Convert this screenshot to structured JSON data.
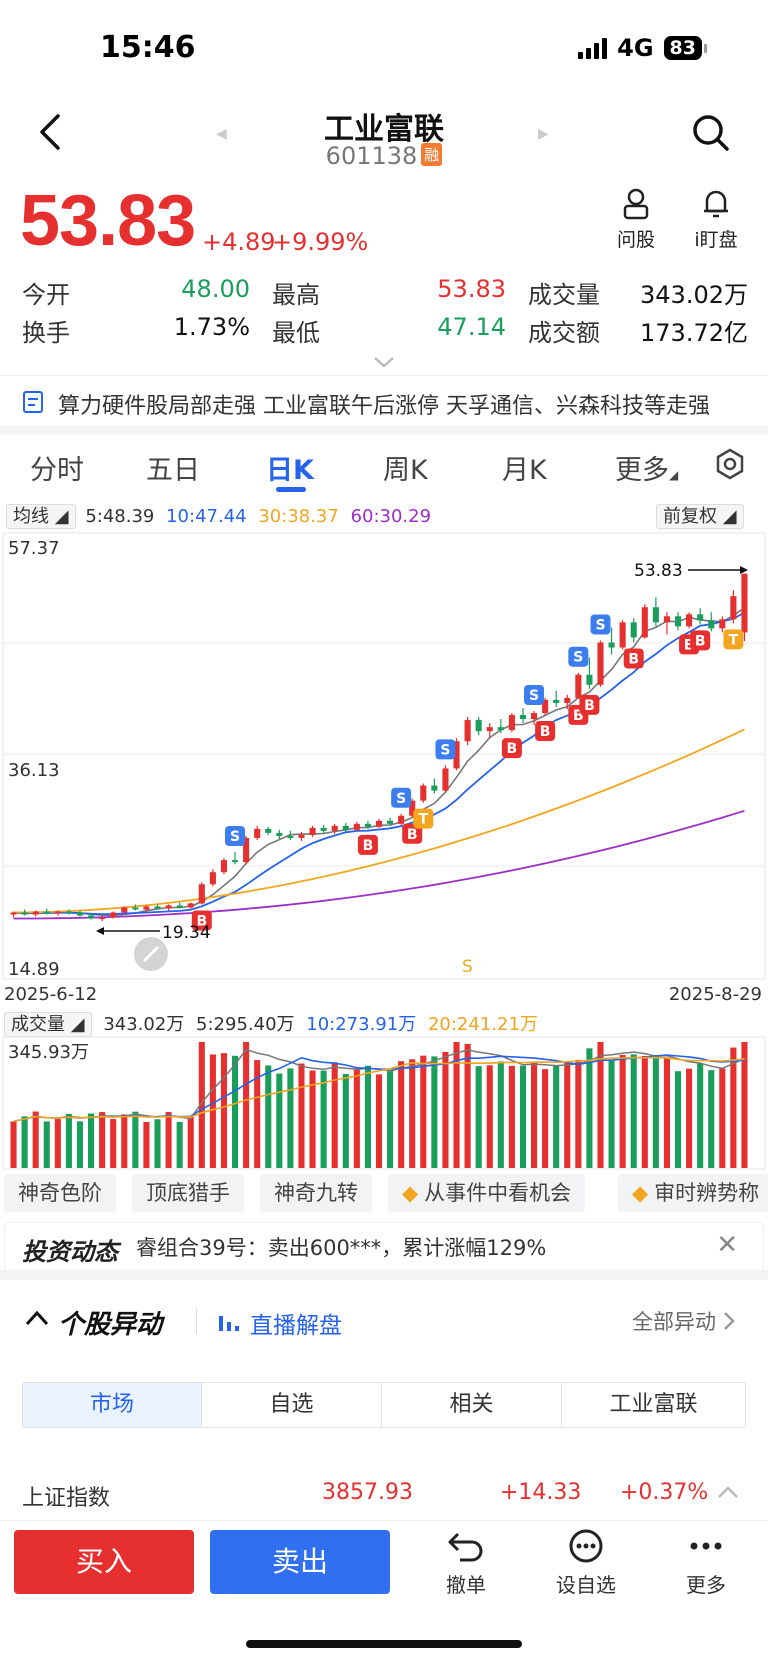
{
  "status": {
    "time": "15:46",
    "network": "4G",
    "battery": "83"
  },
  "header": {
    "title": "工业富联",
    "code": "601138",
    "rong_badge": "融"
  },
  "quote": {
    "price": "53.83",
    "change": "+4.89",
    "change_pct": "+9.99%",
    "ask_label": "问股",
    "watch_label": "i盯盘",
    "stats": [
      {
        "label": "今开",
        "value": "48.00",
        "color": "green"
      },
      {
        "label": "最高",
        "value": "53.83",
        "color": "red"
      },
      {
        "label": "成交量",
        "value": "343.02万",
        "color": "black"
      },
      {
        "label": "换手",
        "value": "1.73%",
        "color": "black"
      },
      {
        "label": "最低",
        "value": "47.14",
        "color": "green"
      },
      {
        "label": "成交额",
        "value": "173.72亿",
        "color": "black"
      }
    ]
  },
  "news": {
    "headline": "算力硬件股局部走强 工业富联午后涨停 天孚通信、兴森科技等走强"
  },
  "tabs": [
    "分时",
    "五日",
    "日K",
    "周K",
    "月K",
    "更多"
  ],
  "active_tab": "日K",
  "ma": {
    "chip": "均线",
    "ma5": "5:48.39",
    "ma10": "10:47.44",
    "ma30": "30:38.37",
    "ma60": "60:30.29",
    "adjust": "前复权"
  },
  "kchart": {
    "y_top": "57.37",
    "y_mid": "36.13",
    "y_bottom": "14.89",
    "date_start": "2025-6-12",
    "date_end": "2025-8-29",
    "high_label": "53.83",
    "low_label": "19.34",
    "s_marker": "S"
  },
  "volume": {
    "chip": "成交量",
    "vol": "343.02万",
    "ma5": "5:295.40万",
    "ma10": "10:273.91万",
    "ma20": "20:241.21万",
    "y_top": "345.93万"
  },
  "features": [
    "神奇色阶",
    "顶底猎手",
    "神奇九转",
    "从事件中看机会",
    "审时辨势称"
  ],
  "invest": {
    "title": "投资动态",
    "text": "睿组合39号：卖出600***，累计涨幅129%"
  },
  "section": {
    "title": "个股异动",
    "live": "直播解盘",
    "all": "全部异动"
  },
  "segments": [
    "市场",
    "自选",
    "相关",
    "工业富联"
  ],
  "index_row": {
    "name": "上证指数",
    "value": "3857.93",
    "change": "+14.33",
    "pct": "+0.37%"
  },
  "bottom": {
    "buy": "买入",
    "sell": "卖出",
    "cancel": "撤单",
    "watch": "设自选",
    "more": "更多"
  },
  "chart_data": {
    "type": "candlestick",
    "title": "",
    "x_range": [
      "2025-6-12",
      "2025-8-29"
    ],
    "ylim": [
      14.89,
      57.37
    ],
    "last_close": 53.83,
    "ma": {
      "ma5": 48.39,
      "ma10": 47.44,
      "ma30": 38.37,
      "ma60": 30.29
    },
    "ohlc": [
      [
        20.0,
        20.3,
        19.7,
        20.2
      ],
      [
        20.2,
        20.5,
        19.9,
        20.0
      ],
      [
        20.0,
        20.4,
        19.8,
        20.3
      ],
      [
        20.3,
        20.6,
        20.0,
        20.1
      ],
      [
        20.1,
        20.4,
        19.9,
        20.3
      ],
      [
        20.3,
        20.5,
        20.0,
        20.2
      ],
      [
        20.2,
        20.4,
        19.8,
        19.9
      ],
      [
        19.9,
        20.2,
        19.5,
        19.6
      ],
      [
        19.6,
        19.9,
        19.34,
        19.7
      ],
      [
        19.7,
        20.3,
        19.6,
        20.2
      ],
      [
        20.2,
        20.8,
        20.1,
        20.7
      ],
      [
        20.7,
        21.0,
        20.4,
        20.5
      ],
      [
        20.5,
        20.9,
        20.3,
        20.8
      ],
      [
        20.8,
        21.0,
        20.5,
        20.6
      ],
      [
        20.6,
        21.0,
        20.4,
        20.9
      ],
      [
        20.9,
        21.2,
        20.6,
        20.7
      ],
      [
        20.7,
        21.2,
        20.6,
        21.1
      ],
      [
        21.1,
        23.2,
        21.0,
        23.0
      ],
      [
        23.0,
        24.5,
        22.8,
        24.2
      ],
      [
        24.2,
        25.6,
        24.0,
        25.4
      ],
      [
        25.4,
        26.2,
        25.0,
        25.2
      ],
      [
        25.2,
        27.8,
        25.0,
        27.6
      ],
      [
        27.6,
        28.8,
        27.4,
        28.5
      ],
      [
        28.5,
        28.7,
        27.9,
        28.1
      ],
      [
        28.1,
        28.4,
        27.5,
        27.8
      ],
      [
        27.8,
        28.3,
        27.4,
        27.6
      ],
      [
        27.6,
        28.2,
        27.3,
        27.9
      ],
      [
        27.9,
        28.8,
        27.7,
        28.6
      ],
      [
        28.6,
        28.9,
        28.1,
        28.3
      ],
      [
        28.3,
        29.0,
        28.0,
        28.8
      ],
      [
        28.8,
        29.1,
        28.2,
        28.4
      ],
      [
        28.4,
        29.2,
        28.3,
        29.0
      ],
      [
        29.0,
        29.3,
        28.5,
        28.7
      ],
      [
        28.7,
        29.5,
        28.6,
        29.3
      ],
      [
        29.3,
        29.6,
        28.8,
        29.0
      ],
      [
        29.0,
        30.0,
        28.9,
        29.8
      ],
      [
        29.8,
        31.5,
        29.6,
        31.3
      ],
      [
        31.3,
        33.0,
        31.1,
        32.8
      ],
      [
        32.8,
        33.5,
        32.0,
        32.3
      ],
      [
        32.3,
        34.8,
        32.2,
        34.5
      ],
      [
        34.5,
        37.5,
        34.3,
        37.2
      ],
      [
        37.2,
        39.6,
        36.8,
        39.3
      ],
      [
        39.3,
        39.6,
        37.8,
        38.2
      ],
      [
        38.2,
        39.0,
        37.5,
        38.6
      ],
      [
        38.6,
        39.4,
        38.0,
        38.3
      ],
      [
        38.3,
        40.0,
        38.1,
        39.8
      ],
      [
        39.8,
        40.5,
        39.0,
        39.4
      ],
      [
        39.4,
        40.2,
        38.8,
        40.0
      ],
      [
        40.0,
        41.5,
        39.8,
        41.3
      ],
      [
        41.3,
        42.2,
        40.6,
        41.0
      ],
      [
        41.0,
        41.8,
        40.4,
        41.5
      ],
      [
        41.5,
        44.0,
        41.4,
        43.8
      ],
      [
        43.8,
        45.5,
        42.4,
        42.8
      ],
      [
        42.8,
        47.2,
        42.6,
        47.0
      ],
      [
        47.0,
        48.5,
        45.8,
        46.5
      ],
      [
        46.5,
        49.2,
        46.3,
        49.0
      ],
      [
        49.0,
        49.4,
        47.0,
        47.5
      ],
      [
        47.5,
        50.8,
        47.4,
        50.5
      ],
      [
        50.5,
        51.5,
        48.6,
        49.0
      ],
      [
        49.0,
        50.0,
        47.8,
        49.6
      ],
      [
        49.6,
        50.0,
        48.2,
        48.6
      ],
      [
        48.6,
        50.0,
        48.4,
        49.8
      ],
      [
        49.8,
        50.4,
        48.8,
        49.2
      ],
      [
        49.2,
        50.0,
        48.1,
        48.4
      ],
      [
        48.4,
        49.6,
        48.0,
        49.3
      ],
      [
        49.3,
        52.2,
        48.9,
        51.6
      ],
      [
        48.0,
        53.83,
        47.14,
        53.83
      ]
    ],
    "volume_axis_max": "345.93万"
  }
}
